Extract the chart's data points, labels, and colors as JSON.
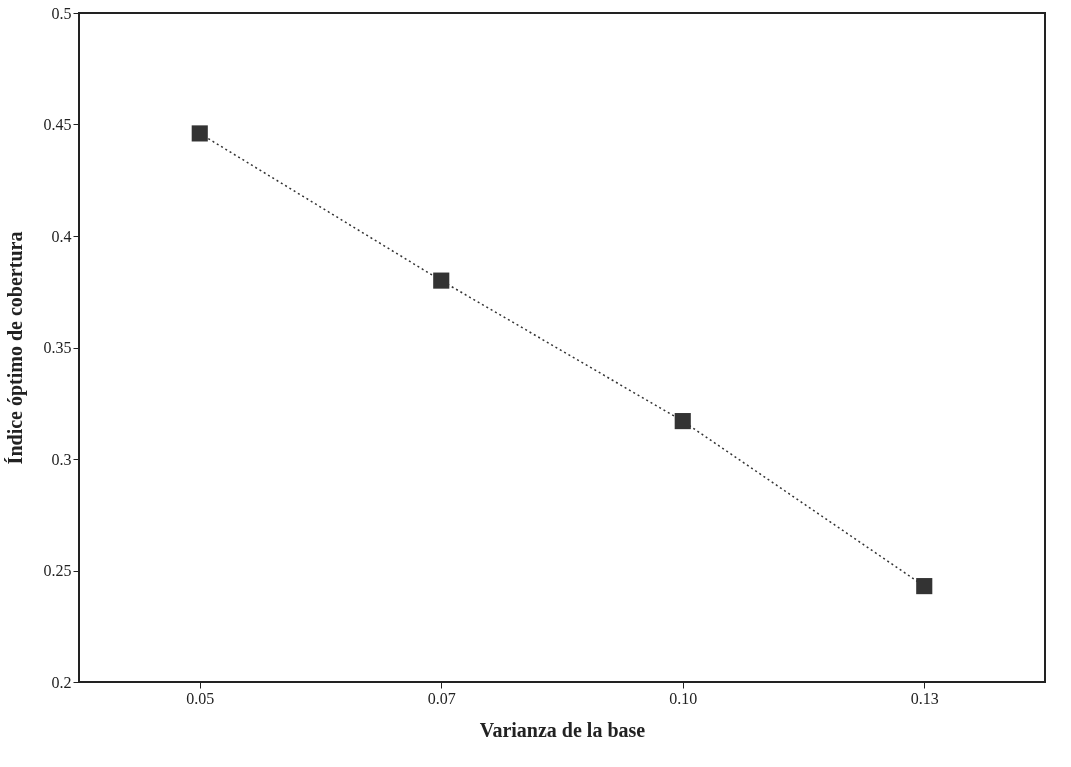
{
  "chart_data": {
    "type": "line",
    "xlabel": "Varianza de la base",
    "ylabel": "Índice óptimo de cobertura",
    "categories": [
      "0.05",
      "0.07",
      "0.10",
      "0.13"
    ],
    "series": [
      {
        "color": "#333333",
        "values": [
          0.446,
          0.38,
          0.317,
          0.243
        ]
      }
    ],
    "ylim": [
      0.2,
      0.5
    ],
    "yticks": [
      0.2,
      0.25,
      0.3,
      0.35,
      0.4,
      0.45,
      0.5
    ],
    "marker": "square",
    "line_style": "dotted"
  }
}
